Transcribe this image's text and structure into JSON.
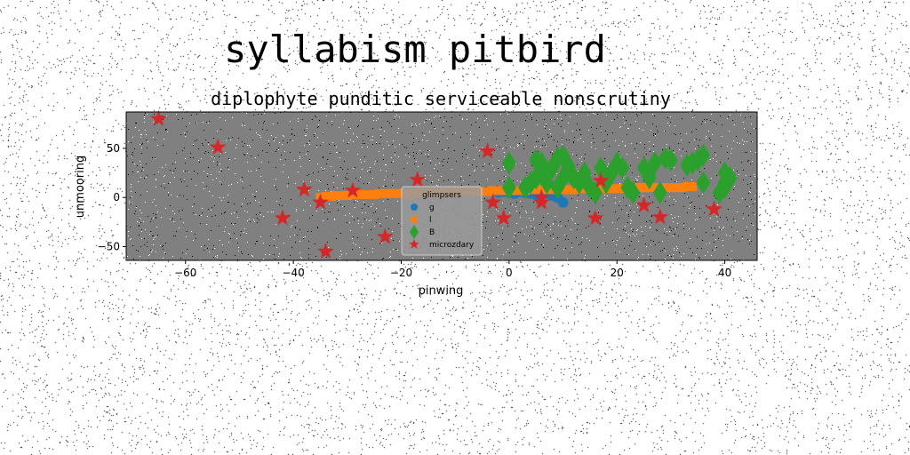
{
  "chart_data": {
    "type": "scatter",
    "suptitle": "syllabism pitbird",
    "title": "diplophyte punditic serviceable nonscrutiny",
    "xlabel": "pinwing",
    "ylabel": "unmooring",
    "xlim": [
      -71,
      46
    ],
    "ylim": [
      -64,
      87
    ],
    "xticks": [
      -60,
      -40,
      -20,
      0,
      20,
      40
    ],
    "yticks": [
      -50,
      0,
      50
    ],
    "xtick_labels": [
      "−60",
      "−40",
      "−20",
      "0",
      "20",
      "40"
    ],
    "ytick_labels": [
      "−50",
      "0",
      "50"
    ],
    "legend": {
      "title": "glimpsers",
      "placement": "lower center"
    },
    "series": [
      {
        "name": "g",
        "marker": "circle",
        "color": "#1f77b4",
        "x": [
          -2,
          -1,
          0,
          1,
          2,
          3,
          4,
          5,
          6,
          7,
          8,
          9,
          10
        ],
        "y": [
          5,
          6,
          5,
          4,
          6,
          5,
          4,
          3,
          5,
          4,
          2,
          0,
          -5
        ]
      },
      {
        "name": "l",
        "marker": "square",
        "color": "#ff7f0e",
        "x": [
          -35,
          -34,
          -33,
          -32,
          -31,
          -30,
          -29,
          -28,
          -27,
          -26,
          -25,
          -24,
          -23,
          -22,
          -21,
          -20,
          -19,
          -18,
          -17,
          -16,
          -15,
          -14,
          -13,
          -12,
          -11,
          -10,
          -9,
          -8,
          -7,
          -6,
          -5,
          -4,
          -3,
          -2,
          -1,
          0,
          1,
          2,
          3,
          4,
          5,
          6,
          7,
          8,
          9,
          10,
          11,
          12,
          13,
          14,
          15,
          16,
          17,
          18,
          19,
          20,
          21,
          22,
          23,
          24,
          25,
          26,
          27,
          28,
          29,
          30,
          31,
          32,
          33,
          34
        ],
        "y": [
          0,
          1,
          1,
          2,
          2,
          2,
          3,
          3,
          3,
          3,
          3,
          4,
          4,
          4,
          4,
          4,
          4,
          4,
          5,
          5,
          5,
          5,
          5,
          5,
          5,
          6,
          6,
          6,
          6,
          6,
          6,
          6,
          7,
          7,
          7,
          7,
          7,
          7,
          7,
          8,
          8,
          8,
          8,
          8,
          8,
          8,
          8,
          8,
          9,
          9,
          9,
          9,
          9,
          9,
          9,
          9,
          9,
          9,
          9,
          10,
          10,
          10,
          10,
          10,
          10,
          10,
          10,
          10,
          11,
          11
        ]
      },
      {
        "name": "B",
        "marker": "diamond",
        "color": "#2ca02c",
        "x": [
          0,
          0,
          3,
          4,
          5,
          5,
          6,
          6,
          7,
          8,
          9,
          9,
          10,
          10,
          11,
          12,
          13,
          14,
          15,
          16,
          17,
          18,
          19,
          20,
          21,
          22,
          23,
          25,
          26,
          27,
          28,
          29,
          30,
          33,
          34,
          35,
          36,
          36,
          39,
          40,
          40,
          41,
          40
        ],
        "y": [
          10,
          35,
          10,
          15,
          38,
          20,
          35,
          25,
          15,
          30,
          40,
          10,
          20,
          42,
          32,
          20,
          15,
          25,
          10,
          5,
          30,
          15,
          25,
          35,
          30,
          10,
          5,
          30,
          20,
          35,
          5,
          40,
          38,
          33,
          35,
          38,
          43,
          15,
          5,
          25,
          10,
          20,
          15
        ]
      },
      {
        "name": "microzdary",
        "marker": "star",
        "color": "#d62728",
        "x": [
          -65,
          -54,
          -38,
          -42,
          -35,
          -29,
          -34,
          -23,
          -17,
          -4,
          -3,
          -1,
          6,
          6,
          16,
          17,
          25,
          28,
          38
        ],
        "y": [
          80,
          51,
          8,
          -21,
          -5,
          7,
          -55,
          -40,
          18,
          47,
          -5,
          -21,
          0,
          -5,
          -21,
          17,
          -8,
          -20,
          -12
        ]
      }
    ]
  }
}
